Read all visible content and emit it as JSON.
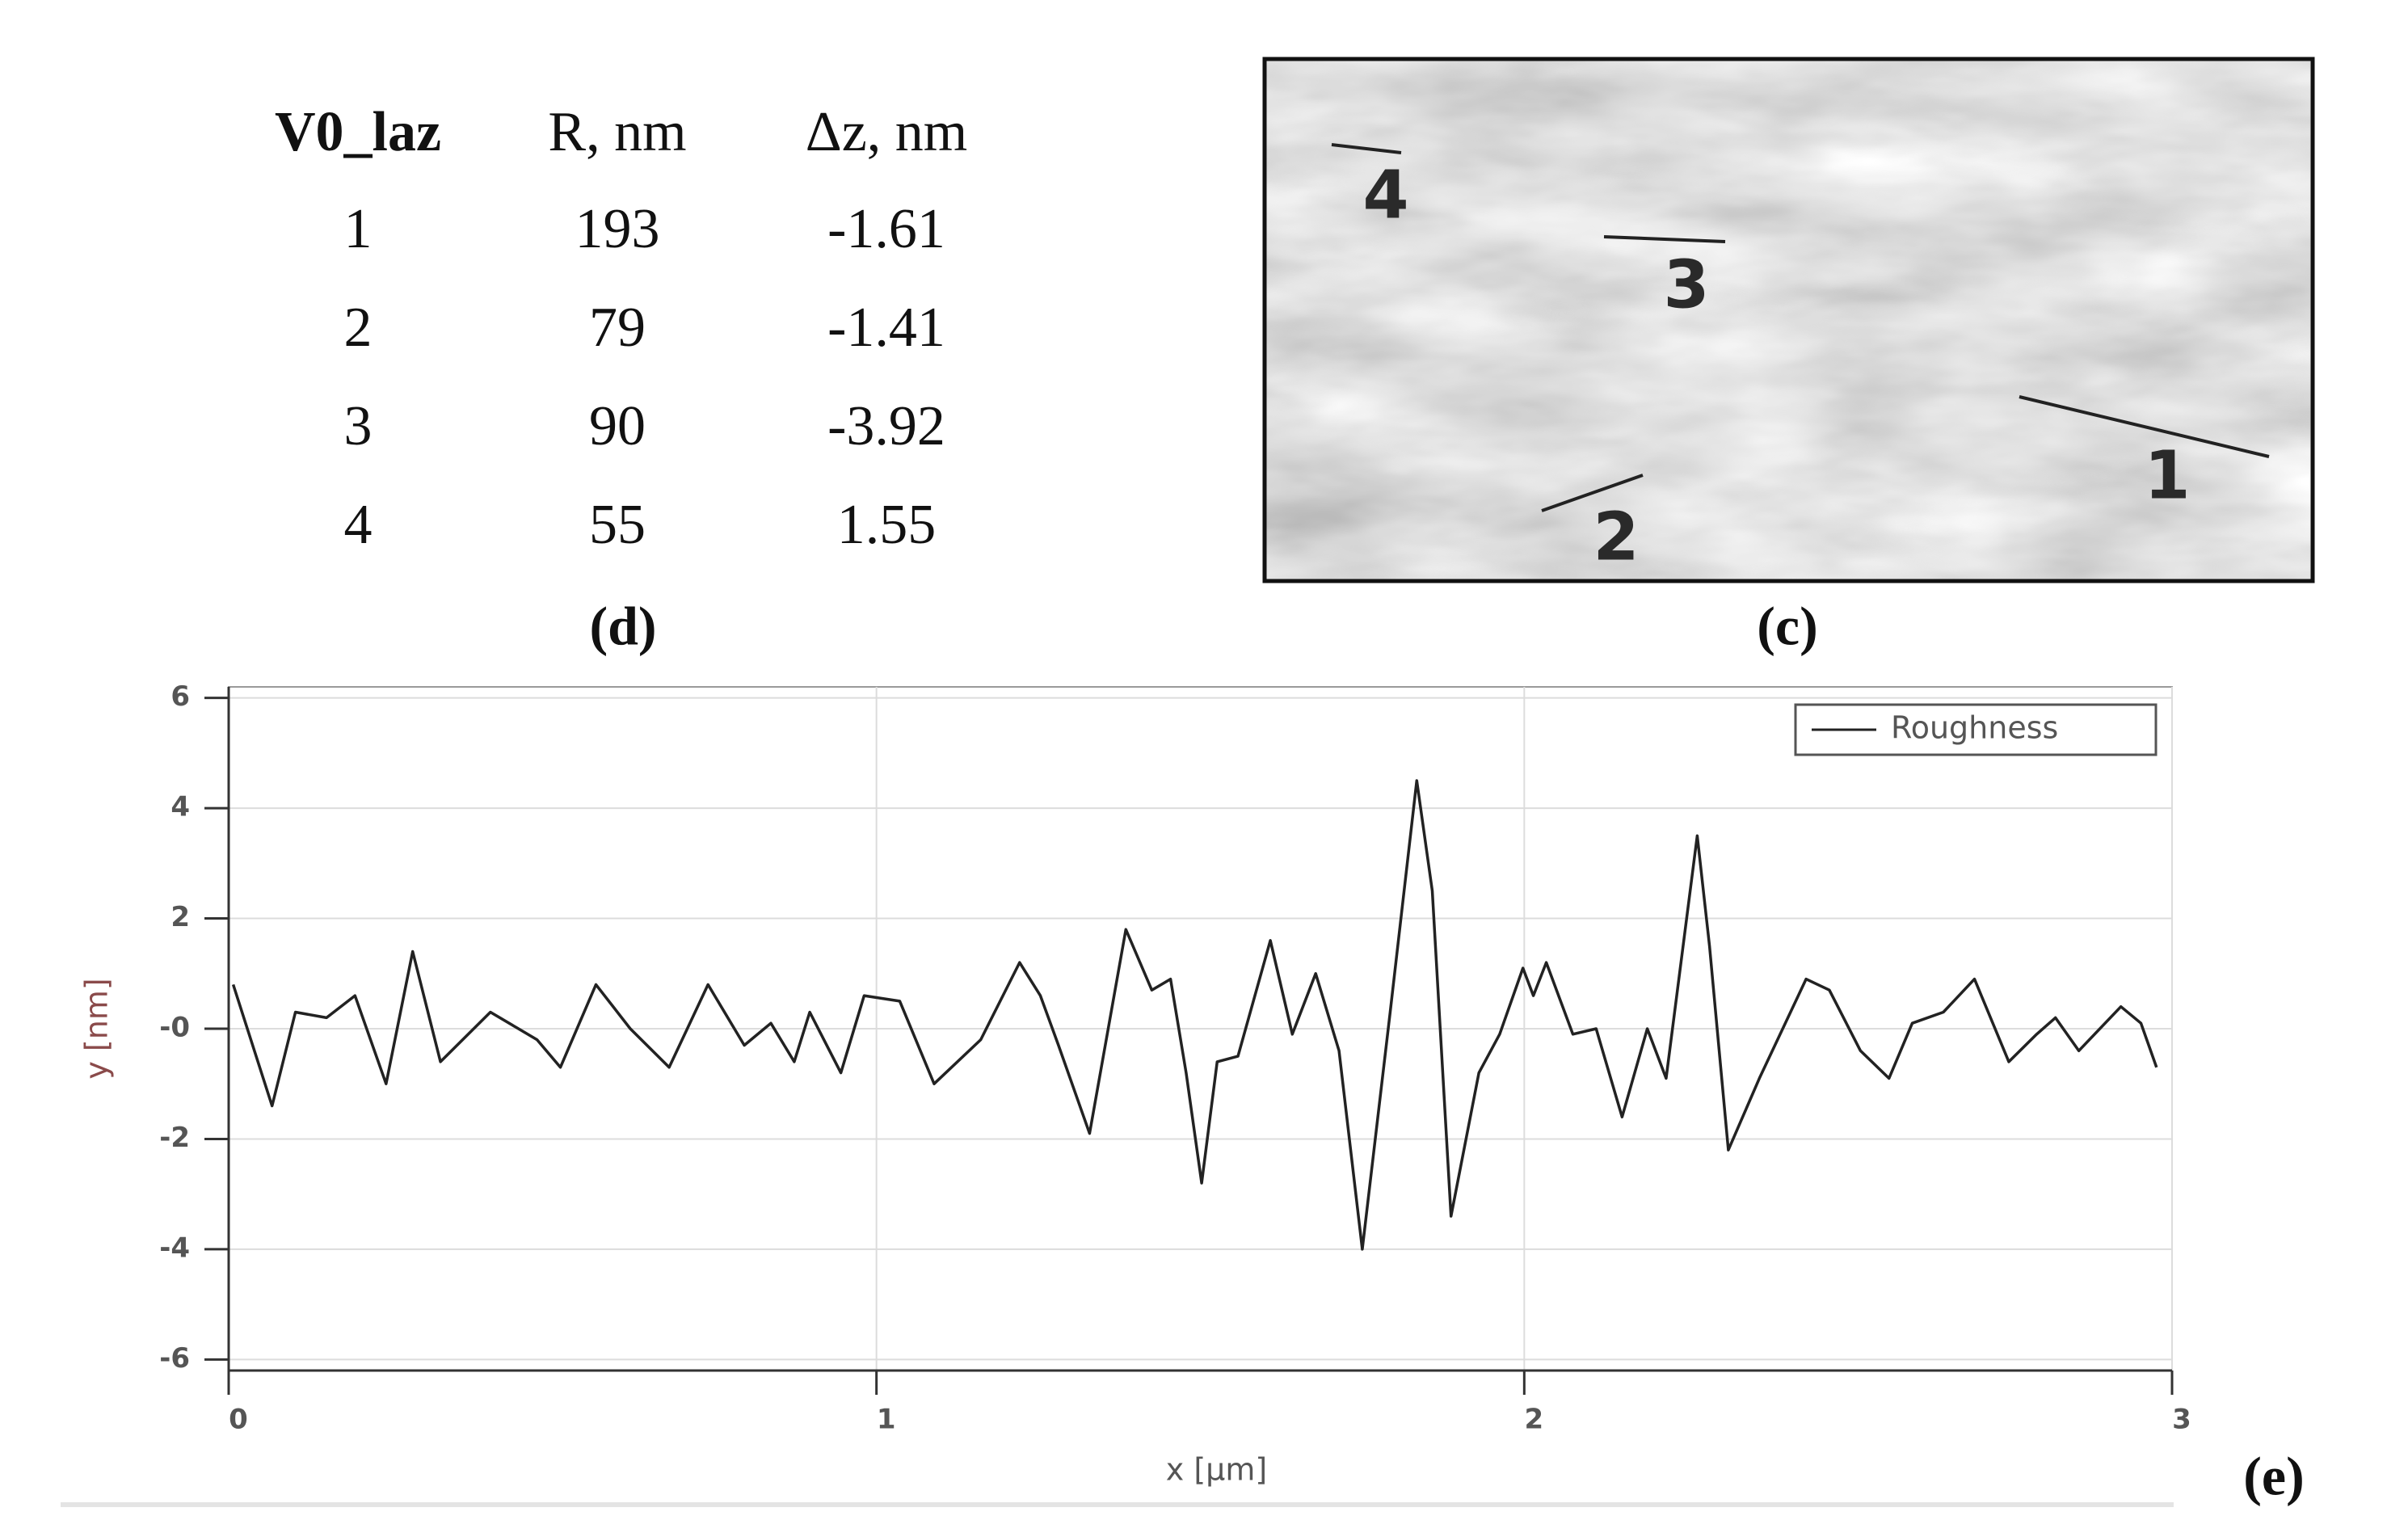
{
  "table": {
    "header": [
      "V0_laz",
      "R, nm",
      "Δz, nm"
    ],
    "rows": [
      [
        "1",
        "193",
        "-1.61"
      ],
      [
        "2",
        "79",
        "-1.41"
      ],
      [
        "3",
        "90",
        "-3.92"
      ],
      [
        "4",
        "55",
        "1.55"
      ]
    ],
    "label": "(d)"
  },
  "image": {
    "label": "(c)",
    "markers": [
      "1",
      "2",
      "3",
      "4"
    ]
  },
  "chart_data": {
    "type": "line",
    "label": "(e)",
    "xlabel": "x [µm]",
    "ylabel": "y [nm]",
    "xlim": [
      0,
      3
    ],
    "ylim": [
      -6.2,
      6.2
    ],
    "xticks": [
      0,
      1,
      2,
      3
    ],
    "yticks": [
      -6,
      -4,
      -2,
      {
        "value": 0,
        "label": "-0"
      },
      2,
      4,
      6
    ],
    "grid": true,
    "legend": "upper right",
    "x": [
      0.007,
      0.067,
      0.103,
      0.151,
      0.195,
      0.243,
      0.284,
      0.327,
      0.404,
      0.476,
      0.512,
      0.567,
      0.62,
      0.68,
      0.74,
      0.796,
      0.837,
      0.873,
      0.897,
      0.945,
      0.981,
      1.036,
      1.089,
      1.161,
      1.221,
      1.253,
      1.281,
      1.329,
      1.385,
      1.425,
      1.454,
      1.478,
      1.502,
      1.526,
      1.558,
      1.608,
      1.642,
      1.678,
      1.714,
      1.75,
      1.793,
      1.834,
      1.858,
      1.887,
      1.93,
      1.962,
      1.998,
      2.014,
      2.034,
      2.075,
      2.111,
      2.151,
      2.19,
      2.219,
      2.267,
      2.286,
      2.315,
      2.363,
      2.435,
      2.471,
      2.519,
      2.563,
      2.599,
      2.647,
      2.695,
      2.748,
      2.791,
      2.82,
      2.856,
      2.921,
      2.952,
      2.976
    ],
    "series": [
      {
        "name": "Roughness",
        "color": "#222222",
        "values": [
          0.8,
          -1.4,
          0.3,
          0.2,
          0.6,
          -1.0,
          1.4,
          -0.6,
          0.3,
          -0.2,
          -0.7,
          0.8,
          0.0,
          -0.7,
          0.8,
          -0.3,
          0.1,
          -0.6,
          0.3,
          -0.8,
          0.6,
          0.5,
          -1.0,
          -0.2,
          1.2,
          0.6,
          -0.3,
          -1.9,
          1.8,
          0.7,
          0.9,
          -0.8,
          -2.8,
          -0.6,
          -0.5,
          1.6,
          -0.1,
          1.0,
          -0.4,
          -4.0,
          0.3,
          4.5,
          2.5,
          -3.4,
          -0.8,
          -0.1,
          1.1,
          0.6,
          1.2,
          -0.1,
          0.0,
          -1.6,
          0.0,
          -0.9,
          3.5,
          1.5,
          -2.2,
          -0.9,
          0.9,
          0.7,
          -0.4,
          -0.9,
          0.1,
          0.3,
          0.9,
          -0.6,
          -0.1,
          0.2,
          -0.4,
          0.4,
          0.1,
          -0.7
        ]
      }
    ]
  }
}
